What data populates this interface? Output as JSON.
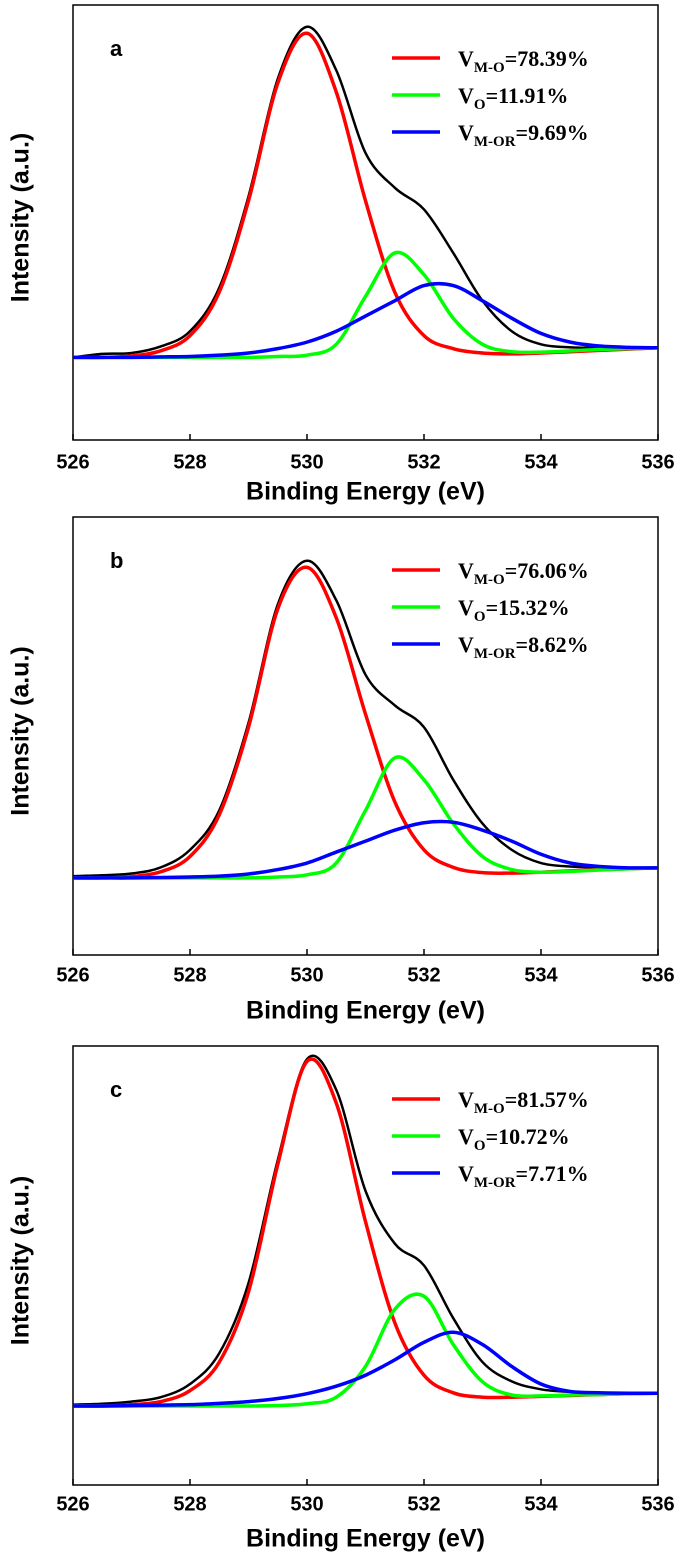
{
  "chart_data": [
    {
      "type": "line",
      "panel_label": "a",
      "xlabel": "Binding Energy (eV)",
      "ylabel": "Intensity (a.u.)",
      "x": [
        526,
        526.5,
        527,
        527.5,
        528,
        528.5,
        529,
        529.5,
        530,
        530.5,
        531,
        531.5,
        532,
        532.5,
        533,
        533.5,
        534,
        534.5,
        535,
        535.5,
        536
      ],
      "xlim": [
        526,
        536
      ],
      "ylim": [
        0,
        100
      ],
      "xticks": [
        526,
        528,
        530,
        532,
        534,
        536
      ],
      "series": [
        {
          "color": "#000000",
          "values": [
            19,
            19.8,
            20,
            21.5,
            25,
            35,
            56,
            83,
            95,
            85,
            66,
            58,
            53,
            43,
            32,
            25,
            22,
            21.3,
            21.2,
            21,
            21.3
          ]
        },
        {
          "name": "VM-O=78.39%",
          "color": "#ff0000",
          "values": [
            19,
            19,
            19.3,
            20.5,
            24,
            34,
            55,
            82,
            93.5,
            80,
            55,
            34,
            24,
            21,
            20,
            19.8,
            20,
            20.3,
            20.6,
            20.9,
            21.2
          ]
        },
        {
          "name": "VO=11.91%",
          "color": "#00ff00",
          "values": [
            19,
            19,
            19,
            19,
            19,
            19,
            19,
            19.2,
            19.5,
            22,
            33,
            43,
            38,
            28,
            22,
            20.3,
            20.2,
            20.5,
            20.8,
            21,
            21.2
          ]
        },
        {
          "name": "VM-OR=9.69%",
          "color": "#0000ff",
          "values": [
            19,
            19,
            19,
            19.1,
            19.2,
            19.5,
            20,
            21,
            22.5,
            25,
            28.5,
            32,
            35.5,
            35.5,
            32,
            28,
            24.5,
            22.5,
            21.6,
            21.3,
            21.2
          ]
        }
      ]
    },
    {
      "type": "line",
      "panel_label": "b",
      "xlabel": "Binding Energy (eV)",
      "ylabel": "Intensity (a.u.)",
      "x": [
        526,
        526.5,
        527,
        527.5,
        528,
        528.5,
        529,
        529.5,
        530,
        530.5,
        531,
        531.5,
        532,
        532.5,
        533,
        533.5,
        534,
        534.5,
        535,
        535.5,
        536
      ],
      "xlim": [
        526,
        536
      ],
      "ylim": [
        0,
        100
      ],
      "xticks": [
        526,
        528,
        530,
        532,
        534,
        536
      ],
      "series": [
        {
          "color": "#000000",
          "values": [
            18,
            18.2,
            18.6,
            20,
            24,
            33,
            53,
            80,
            90,
            81,
            64,
            57,
            52,
            40,
            30,
            24,
            21,
            20.2,
            20,
            19.9,
            19.9
          ]
        },
        {
          "name": "VM-O=76.06%",
          "color": "#ff0000",
          "values": [
            17.6,
            17.6,
            17.9,
            19,
            22.5,
            32,
            52,
            79,
            88.5,
            77,
            55,
            35,
            24,
            20,
            18.8,
            18.7,
            18.9,
            19.2,
            19.5,
            19.7,
            19.9
          ]
        },
        {
          "name": "VO=15.32%",
          "color": "#00ff00",
          "values": [
            17.6,
            17.6,
            17.6,
            17.6,
            17.6,
            17.6,
            17.6,
            17.8,
            18.3,
            21,
            33,
            45,
            40,
            30,
            22.5,
            19.5,
            18.9,
            19.1,
            19.4,
            19.7,
            19.9
          ]
        },
        {
          "name": "VM-OR=8.62%",
          "color": "#0000ff",
          "values": [
            17.6,
            17.6,
            17.6,
            17.7,
            17.8,
            18,
            18.5,
            19.5,
            21,
            23.5,
            26,
            28.5,
            30.2,
            30.3,
            28.5,
            26,
            23,
            21,
            20.2,
            19.9,
            19.9
          ]
        }
      ]
    },
    {
      "type": "line",
      "panel_label": "c",
      "xlabel": "Binding Energy (eV)",
      "ylabel": "Intensity (a.u.)",
      "x": [
        526,
        526.5,
        527,
        527.5,
        528,
        528.5,
        529,
        529.5,
        530,
        530.5,
        531,
        531.5,
        532,
        532.5,
        533,
        533.5,
        534,
        534.5,
        535,
        535.5,
        536
      ],
      "xlim": [
        526,
        536
      ],
      "ylim": [
        0,
        100
      ],
      "xticks": [
        526,
        528,
        530,
        532,
        534,
        536
      ],
      "series": [
        {
          "color": "#000000",
          "values": [
            18.3,
            18.5,
            19,
            20,
            23,
            30,
            46,
            74,
            97,
            90,
            67,
            55,
            50,
            38,
            28,
            23.6,
            21.8,
            21.2,
            21,
            20.9,
            21
          ]
        },
        {
          "name": "VM-O=81.57%",
          "color": "#ff0000",
          "values": [
            18,
            18,
            18.3,
            19,
            21.5,
            28,
            44,
            73,
            96.5,
            87,
            60,
            37,
            25,
            21,
            20,
            20,
            20.2,
            20.4,
            20.6,
            20.8,
            20.9
          ]
        },
        {
          "name": "VO=10.72%",
          "color": "#00ff00",
          "values": [
            18,
            18,
            18,
            18,
            18,
            18,
            18,
            18.1,
            18.5,
            20,
            27,
            40,
            43,
            32,
            23.5,
            20.5,
            20.3,
            20.5,
            20.6,
            20.8,
            20.9
          ]
        },
        {
          "name": "VM-OR=7.71%",
          "color": "#0000ff",
          "values": [
            18,
            18,
            18.1,
            18.2,
            18.3,
            18.6,
            19,
            19.7,
            20.8,
            22.5,
            25,
            28.5,
            32.5,
            34.8,
            32,
            27,
            23,
            21.3,
            21,
            20.9,
            20.9
          ]
        }
      ]
    }
  ]
}
